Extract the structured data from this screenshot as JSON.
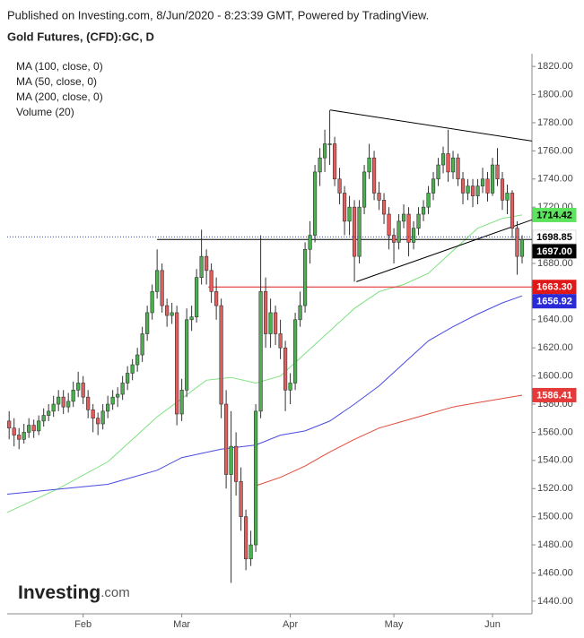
{
  "header": "Published on Investing.com, 8/Jun/2020 - 8:23:39 GMT, Powered by TradingView.",
  "logo": {
    "name": "Investing",
    "suffix": ".com"
  },
  "chart_data": {
    "type": "candlestick",
    "title": "Gold Futures, (CFD):GC, D",
    "legend": [
      "MA (100, close, 0)",
      "MA (50, close, 0)",
      "MA (200, close, 0)",
      "Volume (20)"
    ],
    "up_color": "#4caf50",
    "down_color": "#e35d5d",
    "xlim": [
      -0.4,
      106
    ],
    "xticks": [
      {
        "value": 15,
        "label": "Feb"
      },
      {
        "value": 35,
        "label": "Mar"
      },
      {
        "value": 57,
        "label": "Apr"
      },
      {
        "value": 78,
        "label": "May"
      },
      {
        "value": 98,
        "label": "Jun"
      }
    ],
    "ylim": [
      1431,
      1829
    ],
    "yticks": [
      {
        "value": 1440,
        "label": "1440.00"
      },
      {
        "value": 1460,
        "label": "1460.00"
      },
      {
        "value": 1480,
        "label": "1480.00"
      },
      {
        "value": 1500,
        "label": "1500.00"
      },
      {
        "value": 1520,
        "label": "1520.00"
      },
      {
        "value": 1540,
        "label": "1540.00"
      },
      {
        "value": 1560,
        "label": "1560.00"
      },
      {
        "value": 1580,
        "label": "1580.00"
      },
      {
        "value": 1600,
        "label": "1600.00"
      },
      {
        "value": 1620,
        "label": "1620.00"
      },
      {
        "value": 1640,
        "label": "1640.00"
      },
      {
        "value": 1660,
        "label": "1660.00"
      },
      {
        "value": 1680,
        "label": "1680.00"
      },
      {
        "value": 1700,
        "label": "1700.00"
      },
      {
        "value": 1720,
        "label": "1720.00"
      },
      {
        "value": 1740,
        "label": "1740.00"
      },
      {
        "value": 1760,
        "label": "1760.00"
      },
      {
        "value": 1780,
        "label": "1780.00"
      },
      {
        "value": 1800,
        "label": "1800.00"
      },
      {
        "value": 1820,
        "label": "1820.00"
      }
    ],
    "candles": [
      [
        1568,
        1575,
        1555,
        1563
      ],
      [
        1563,
        1570,
        1550,
        1558
      ],
      [
        1558,
        1563,
        1548,
        1555
      ],
      [
        1555,
        1566,
        1552,
        1560
      ],
      [
        1560,
        1570,
        1556,
        1565
      ],
      [
        1565,
        1569,
        1556,
        1561
      ],
      [
        1561,
        1572,
        1558,
        1568
      ],
      [
        1568,
        1577,
        1564,
        1572
      ],
      [
        1572,
        1580,
        1568,
        1575
      ],
      [
        1575,
        1586,
        1571,
        1580
      ],
      [
        1580,
        1590,
        1575,
        1585
      ],
      [
        1585,
        1590,
        1573,
        1578
      ],
      [
        1578,
        1588,
        1574,
        1582
      ],
      [
        1582,
        1596,
        1578,
        1590
      ],
      [
        1590,
        1603,
        1585,
        1595
      ],
      [
        1595,
        1600,
        1580,
        1585
      ],
      [
        1585,
        1590,
        1570,
        1576
      ],
      [
        1576,
        1580,
        1560,
        1570
      ],
      [
        1570,
        1574,
        1558,
        1566
      ],
      [
        1566,
        1580,
        1562,
        1575
      ],
      [
        1575,
        1586,
        1570,
        1580
      ],
      [
        1580,
        1590,
        1576,
        1585
      ],
      [
        1585,
        1592,
        1578,
        1587
      ],
      [
        1587,
        1600,
        1583,
        1595
      ],
      [
        1595,
        1607,
        1590,
        1602
      ],
      [
        1602,
        1612,
        1597,
        1608
      ],
      [
        1608,
        1620,
        1603,
        1615
      ],
      [
        1615,
        1635,
        1610,
        1630
      ],
      [
        1630,
        1650,
        1625,
        1645
      ],
      [
        1645,
        1665,
        1640,
        1660
      ],
      [
        1660,
        1690,
        1655,
        1675
      ],
      [
        1675,
        1680,
        1645,
        1650
      ],
      [
        1650,
        1655,
        1635,
        1643
      ],
      [
        1643,
        1652,
        1637,
        1645
      ],
      [
        1645,
        1650,
        1565,
        1573
      ],
      [
        1573,
        1598,
        1568,
        1590
      ],
      [
        1590,
        1648,
        1585,
        1640
      ],
      [
        1640,
        1650,
        1632,
        1642
      ],
      [
        1642,
        1676,
        1638,
        1670
      ],
      [
        1670,
        1704,
        1665,
        1685
      ],
      [
        1685,
        1690,
        1665,
        1675
      ],
      [
        1675,
        1680,
        1652,
        1660
      ],
      [
        1660,
        1670,
        1640,
        1650
      ],
      [
        1650,
        1655,
        1570,
        1580
      ],
      [
        1580,
        1590,
        1520,
        1530
      ],
      [
        1530,
        1575,
        1453,
        1550
      ],
      [
        1550,
        1560,
        1515,
        1525
      ],
      [
        1525,
        1535,
        1490,
        1500
      ],
      [
        1500,
        1505,
        1462,
        1470
      ],
      [
        1470,
        1490,
        1465,
        1480
      ],
      [
        1480,
        1580,
        1475,
        1575
      ],
      [
        1575,
        1700,
        1570,
        1660
      ],
      [
        1660,
        1670,
        1620,
        1630
      ],
      [
        1630,
        1655,
        1620,
        1645
      ],
      [
        1645,
        1650,
        1622,
        1630
      ],
      [
        1630,
        1640,
        1612,
        1620
      ],
      [
        1620,
        1625,
        1575,
        1590
      ],
      [
        1590,
        1602,
        1580,
        1595
      ],
      [
        1595,
        1645,
        1590,
        1640
      ],
      [
        1640,
        1660,
        1635,
        1650
      ],
      [
        1650,
        1695,
        1645,
        1690
      ],
      [
        1690,
        1710,
        1680,
        1700
      ],
      [
        1700,
        1750,
        1695,
        1745
      ],
      [
        1745,
        1762,
        1735,
        1755
      ],
      [
        1755,
        1775,
        1745,
        1765
      ],
      [
        1765,
        1789,
        1750,
        1765
      ],
      [
        1765,
        1770,
        1735,
        1740
      ],
      [
        1740,
        1748,
        1722,
        1730
      ],
      [
        1730,
        1735,
        1700,
        1710
      ],
      [
        1710,
        1728,
        1700,
        1720
      ],
      [
        1720,
        1725,
        1667,
        1685
      ],
      [
        1685,
        1725,
        1680,
        1720
      ],
      [
        1720,
        1750,
        1715,
        1745
      ],
      [
        1745,
        1765,
        1740,
        1755
      ],
      [
        1755,
        1760,
        1725,
        1730
      ],
      [
        1730,
        1738,
        1718,
        1725
      ],
      [
        1725,
        1730,
        1708,
        1715
      ],
      [
        1715,
        1720,
        1690,
        1700
      ],
      [
        1700,
        1705,
        1680,
        1695
      ],
      [
        1695,
        1715,
        1690,
        1710
      ],
      [
        1710,
        1722,
        1705,
        1715
      ],
      [
        1715,
        1720,
        1685,
        1695
      ],
      [
        1695,
        1710,
        1690,
        1705
      ],
      [
        1705,
        1720,
        1700,
        1715
      ],
      [
        1715,
        1725,
        1710,
        1720
      ],
      [
        1720,
        1735,
        1715,
        1730
      ],
      [
        1730,
        1745,
        1725,
        1740
      ],
      [
        1740,
        1755,
        1735,
        1750
      ],
      [
        1750,
        1763,
        1744,
        1758
      ],
      [
        1758,
        1775,
        1738,
        1745
      ],
      [
        1745,
        1760,
        1740,
        1755
      ],
      [
        1755,
        1758,
        1735,
        1740
      ],
      [
        1740,
        1745,
        1722,
        1730
      ],
      [
        1730,
        1740,
        1725,
        1735
      ],
      [
        1735,
        1740,
        1720,
        1728
      ],
      [
        1728,
        1740,
        1722,
        1735
      ],
      [
        1735,
        1748,
        1730,
        1740
      ],
      [
        1740,
        1745,
        1724,
        1730
      ],
      [
        1730,
        1755,
        1728,
        1750
      ],
      [
        1750,
        1762,
        1735,
        1740
      ],
      [
        1740,
        1745,
        1718,
        1725
      ],
      [
        1725,
        1736,
        1715,
        1730
      ],
      [
        1730,
        1732,
        1698,
        1705
      ],
      [
        1705,
        1710,
        1672,
        1685
      ],
      [
        1685,
        1700,
        1680,
        1697
      ]
    ],
    "series": [
      {
        "name": "MA (50, close, 0)",
        "color": "#7ee07e",
        "x": [
          -0.4,
          10,
          20,
          30,
          40,
          45,
          50,
          55,
          60,
          65,
          70,
          75,
          80,
          85,
          90,
          95,
          100,
          104
        ],
        "values": [
          1503,
          1520,
          1539,
          1571,
          1597,
          1599,
          1595,
          1600,
          1616,
          1632,
          1648,
          1660,
          1665,
          1673,
          1689,
          1705,
          1712,
          1714.42
        ]
      },
      {
        "name": "MA (100, close, 0)",
        "color": "#4a4ae0",
        "x": [
          -0.4,
          20,
          30,
          35,
          43,
          50,
          55,
          60,
          65,
          70,
          75,
          80,
          85,
          90,
          95,
          100,
          104
        ],
        "values": [
          1516,
          1523,
          1533,
          1542,
          1548,
          1551,
          1558,
          1561,
          1568,
          1580,
          1593,
          1609,
          1625,
          1635,
          1644,
          1652,
          1656.92
        ]
      },
      {
        "name": "MA (200, close, 0)",
        "color": "#e04a3a",
        "x": [
          50,
          55,
          60,
          65,
          70,
          75,
          80,
          85,
          90,
          95,
          100,
          104
        ],
        "values": [
          1522,
          1528,
          1536,
          1546,
          1555,
          1563,
          1568,
          1573,
          1578,
          1581,
          1584,
          1586.41
        ]
      }
    ],
    "trendlines": [
      {
        "color": "#000000",
        "x": [
          65.1,
          106
        ],
        "values": [
          1789,
          1767
        ]
      },
      {
        "color": "#000000",
        "x": [
          70.4,
          106
        ],
        "values": [
          1667,
          1711
        ]
      },
      {
        "color": "#000000",
        "x": [
          30,
          106
        ],
        "values": [
          1697,
          1697
        ]
      },
      {
        "color": "#e01818",
        "x": [
          40.4,
          106
        ],
        "values": [
          1663.3,
          1663.3
        ]
      }
    ],
    "price_labels": [
      {
        "value": 1714.42,
        "color": "#5ee35e",
        "text_color": "#000000"
      },
      {
        "value": 1698.85,
        "color": "#ffffff",
        "text_color": "#000000",
        "dotted": true
      },
      {
        "value": 1697,
        "label": "1697.00",
        "color": "#000000",
        "text_color": "#ffffff"
      },
      {
        "value": 1663.3,
        "label": "1663.30",
        "color": "#e01818",
        "text_color": "#ffffff"
      },
      {
        "value": 1656.92,
        "color": "#2a2ad8",
        "text_color": "#ffffff"
      },
      {
        "value": 1586.41,
        "color": "#e53a3a",
        "text_color": "#ffffff"
      }
    ]
  }
}
